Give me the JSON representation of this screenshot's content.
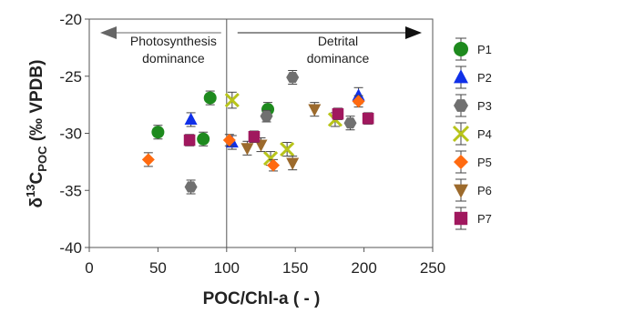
{
  "chart_data": {
    "type": "scatter",
    "xlabel": "POC/Chl-a ( - )",
    "ylabel_parts": {
      "delta": "δ",
      "sup": "13",
      "main": "C",
      "sub": "POC",
      "unit": " (‰ VPDB)"
    },
    "xlim": [
      0,
      250
    ],
    "ylim": [
      -40,
      -20
    ],
    "xticks": [
      0,
      50,
      100,
      150,
      200,
      250
    ],
    "yticks": [
      -40,
      -35,
      -30,
      -25,
      -20
    ],
    "grid": false,
    "legend_position": "right",
    "divider_x": 100,
    "annotations": {
      "left_line1": "Photosynthesis",
      "left_line2": "dominance",
      "right_line1": "Detrital",
      "right_line2": "dominance"
    },
    "series": [
      {
        "name": "P1",
        "marker": "circle",
        "color": "#1e8a1e",
        "points": [
          [
            50,
            -29.9,
            0.6
          ],
          [
            83,
            -30.5,
            0.6
          ],
          [
            88,
            -26.9,
            0.6
          ],
          [
            130,
            -27.9,
            0.6
          ]
        ]
      },
      {
        "name": "P2",
        "marker": "triangle-up",
        "color": "#1030e8",
        "points": [
          [
            74,
            -28.8,
            0.6
          ],
          [
            104,
            -30.8,
            0.6
          ],
          [
            196,
            -26.7,
            0.7
          ]
        ]
      },
      {
        "name": "P3",
        "marker": "hexagon",
        "color": "#707070",
        "points": [
          [
            74,
            -34.7,
            0.6
          ],
          [
            129,
            -28.5,
            0.5
          ],
          [
            148,
            -25.1,
            0.6
          ],
          [
            190,
            -29.1,
            0.6
          ]
        ]
      },
      {
        "name": "P4",
        "marker": "x",
        "color": "#b8c41a",
        "points": [
          [
            104,
            -27.1,
            0.7
          ],
          [
            132,
            -32.2,
            0.6
          ],
          [
            144,
            -31.4,
            0.6
          ],
          [
            179,
            -28.8,
            0.6
          ]
        ]
      },
      {
        "name": "P5",
        "marker": "diamond",
        "color": "#ff6a10",
        "points": [
          [
            43,
            -32.3,
            0.6
          ],
          [
            102,
            -30.6,
            0.5
          ],
          [
            134,
            -32.8,
            0.5
          ],
          [
            196,
            -27.2,
            0.5
          ]
        ]
      },
      {
        "name": "P6",
        "marker": "triangle-down",
        "color": "#9c6a2c",
        "points": [
          [
            115,
            -31.3,
            0.6
          ],
          [
            125,
            -31.0,
            0.6
          ],
          [
            148,
            -32.6,
            0.6
          ],
          [
            164,
            -27.9,
            0.6
          ]
        ]
      },
      {
        "name": "P7",
        "marker": "square",
        "color": "#a0185e",
        "points": [
          [
            73,
            -30.6,
            0.5
          ],
          [
            120,
            -30.3,
            0.5
          ],
          [
            181,
            -28.3,
            0.5
          ],
          [
            203,
            -28.7,
            0.5
          ]
        ]
      }
    ]
  }
}
